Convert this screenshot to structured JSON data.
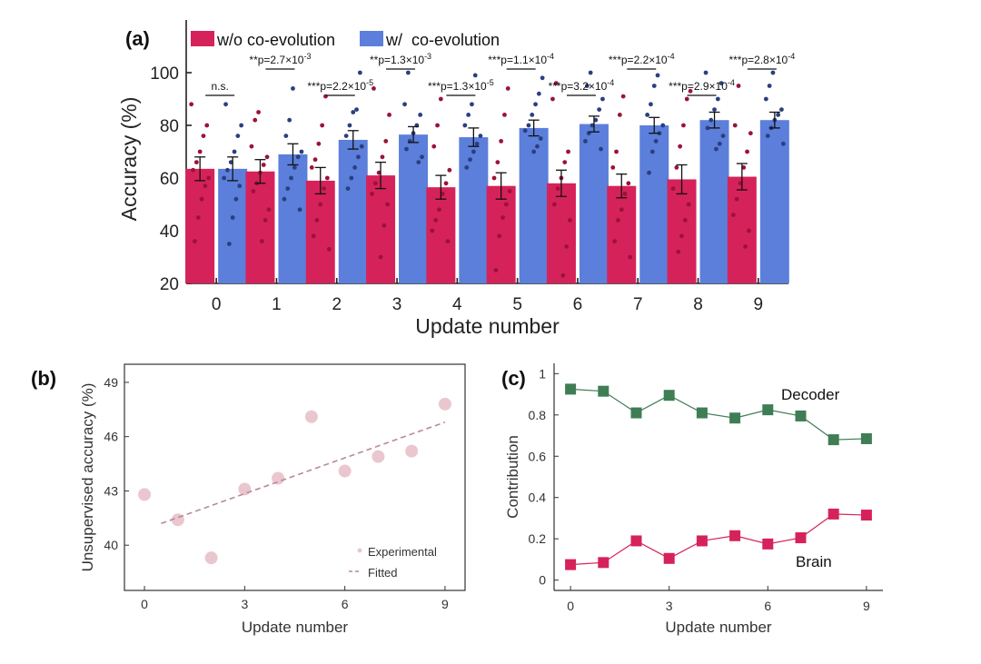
{
  "chart_data": [
    {
      "id": "a",
      "panel_label": "(a)",
      "type": "bar",
      "xlabel": "Update number",
      "ylabel": "Accuracy (%)",
      "ylim": [
        20,
        120
      ],
      "yticks": [
        20,
        40,
        60,
        80,
        100
      ],
      "categories": [
        "0",
        "1",
        "2",
        "3",
        "4",
        "5",
        "6",
        "7",
        "8",
        "9"
      ],
      "series": [
        {
          "name": "w/o co-evolution",
          "color": "#d6225a",
          "dot_color": "#9c1238",
          "values": [
            63.5,
            62.5,
            59,
            61,
            56.5,
            57,
            58,
            57,
            59.5,
            60.5
          ],
          "errors": [
            4.5,
            4.5,
            5,
            5,
            4.5,
            5,
            5,
            4.5,
            5.5,
            5
          ],
          "points": [
            [
              88,
              80,
              76,
              70,
              66,
              63,
              60,
              57,
              52,
              45,
              36
            ],
            [
              85,
              82,
              72,
              68,
              65,
              62,
              58,
              55,
              48,
              44,
              36
            ],
            [
              91,
              80,
              73,
              67,
              64,
              60,
              56,
              50,
              44,
              38,
              33
            ],
            [
              94,
              84,
              74,
              68,
              62,
              58,
              54,
              50,
              42,
              30
            ],
            [
              90,
              80,
              72,
              63,
              58,
              54,
              48,
              44,
              40,
              36
            ],
            [
              94,
              84,
              74,
              66,
              60,
              55,
              50,
              45,
              38,
              25
            ],
            [
              96,
              90,
              70,
              66,
              60,
              56,
              50,
              44,
              34,
              23
            ],
            [
              91,
              84,
              70,
              64,
              58,
              54,
              48,
              44,
              36,
              30
            ],
            [
              93,
              90,
              80,
              72,
              64,
              56,
              50,
              44,
              38,
              32
            ],
            [
              95,
              80,
              77,
              70,
              64,
              58,
              52,
              46,
              40,
              34
            ]
          ]
        },
        {
          "name": "w/  co-evolution",
          "color": "#5b7fdb",
          "dot_color": "#2b3f80",
          "values": [
            63.5,
            69,
            74.5,
            76.5,
            75.5,
            79,
            80.5,
            80,
            82,
            82
          ],
          "errors": [
            4.5,
            4,
            3.5,
            3,
            3.5,
            3,
            3,
            3,
            3,
            3
          ],
          "points": [
            [
              88,
              80,
              76,
              70,
              66,
              63,
              60,
              57,
              52,
              45,
              35
            ],
            [
              94,
              82,
              76,
              70,
              68,
              64,
              60,
              56,
              52,
              48
            ],
            [
              100,
              86,
              85,
              80,
              76,
              72,
              68,
              64,
              60,
              56
            ],
            [
              100,
              88,
              84,
              80,
              77,
              74,
              71,
              68,
              66
            ],
            [
              99,
              88,
              84,
              80,
              76,
              73,
              70,
              67,
              64
            ],
            [
              98,
              92,
              88,
              84,
              80,
              78,
              75,
              72,
              70
            ],
            [
              100,
              95,
              90,
              86,
              82,
              80,
              77,
              74,
              71
            ],
            [
              99,
              95,
              88,
              84,
              80,
              77,
              74,
              70,
              62
            ],
            [
              100,
              96,
              90,
              86,
              82,
              79,
              76,
              73,
              71
            ],
            [
              100,
              95,
              90,
              86,
              84,
              82,
              79,
              76,
              73
            ]
          ]
        }
      ],
      "significance": [
        {
          "category": "0",
          "label": "n.s."
        },
        {
          "category": "1",
          "label": "**p=2.7×10",
          "exp": "-3"
        },
        {
          "category": "2",
          "label": "***p=2.2×10",
          "exp": "-5"
        },
        {
          "category": "3",
          "label": "**p=1.3×10",
          "exp": "-3"
        },
        {
          "category": "4",
          "label": "***p=1.3×10",
          "exp": "-5"
        },
        {
          "category": "5",
          "label": "***p=1.1×10",
          "exp": "-4"
        },
        {
          "category": "6",
          "label": "***p=3.2×10",
          "exp": "-4"
        },
        {
          "category": "7",
          "label": "***p=2.2×10",
          "exp": "-4"
        },
        {
          "category": "8",
          "label": "***p=2.9×10",
          "exp": "-4"
        },
        {
          "category": "9",
          "label": "***p=2.8×10",
          "exp": "-4"
        }
      ]
    },
    {
      "id": "b",
      "panel_label": "(b)",
      "type": "scatter",
      "xlabel": "Update number",
      "ylabel": "Unsupervised accuracy (%)",
      "xlim": [
        -0.6,
        9.6
      ],
      "ylim": [
        37.5,
        50
      ],
      "xticks": [
        0,
        3,
        6,
        9
      ],
      "yticks": [
        40,
        43,
        46,
        49
      ],
      "x": [
        0,
        1,
        2,
        3,
        4,
        5,
        6,
        7,
        8,
        9
      ],
      "y": [
        42.8,
        41.4,
        39.3,
        43.1,
        43.7,
        47.1,
        44.1,
        44.9,
        45.2,
        47.8
      ],
      "fit": {
        "x": [
          0.5,
          9
        ],
        "y": [
          41.2,
          46.8
        ]
      },
      "legend": [
        "Experimental",
        "Fitted"
      ],
      "point_color": "#eac7cf",
      "line_color": "#b88a96"
    },
    {
      "id": "c",
      "panel_label": "(c)",
      "type": "line",
      "xlabel": "Update number",
      "ylabel": "Contribution",
      "xlim": [
        -0.5,
        9.5
      ],
      "ylim": [
        -0.05,
        1.05
      ],
      "xticks": [
        0,
        3,
        6,
        9
      ],
      "yticks": [
        0,
        0.2,
        0.4,
        0.6,
        0.8,
        1
      ],
      "ytick_labels": [
        "0",
        "0.2",
        "0.4",
        "0.6",
        "0.8",
        "1"
      ],
      "x": [
        0,
        1,
        2,
        3,
        4,
        5,
        6,
        7,
        8,
        9
      ],
      "series": [
        {
          "name": "Decoder",
          "color": "#3f7d55",
          "values": [
            0.925,
            0.915,
            0.81,
            0.895,
            0.81,
            0.785,
            0.825,
            0.795,
            0.68,
            0.685
          ]
        },
        {
          "name": "Brain",
          "color": "#d6225a",
          "values": [
            0.075,
            0.085,
            0.19,
            0.105,
            0.19,
            0.215,
            0.175,
            0.205,
            0.32,
            0.315
          ]
        }
      ]
    }
  ]
}
